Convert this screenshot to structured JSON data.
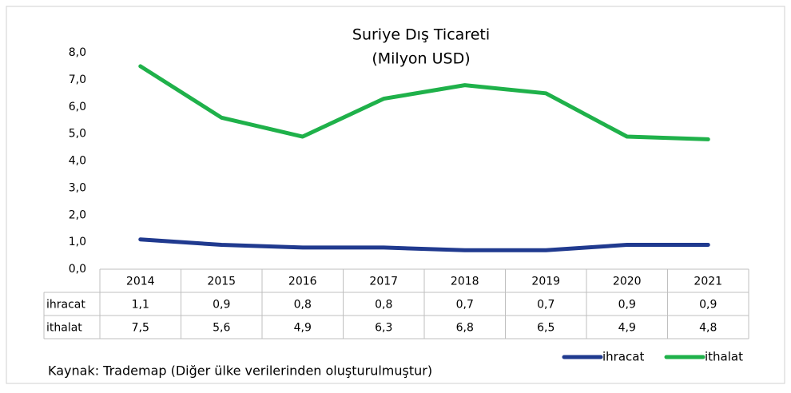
{
  "chart_data": {
    "type": "line",
    "title": "Suriye Dış Ticareti",
    "subtitle": "(Milyon USD)",
    "source": "Kaynak: Trademap (Diğer ülke verilerinden oluşturulmuştur)",
    "categories": [
      "2014",
      "2015",
      "2016",
      "2017",
      "2018",
      "2019",
      "2020",
      "2021"
    ],
    "series": [
      {
        "name": "ihracat",
        "color": "#203a8f",
        "values": [
          1.1,
          0.9,
          0.8,
          0.8,
          0.7,
          0.7,
          0.9,
          0.9
        ],
        "value_labels": [
          "1,1",
          "0,9",
          "0,8",
          "0,8",
          "0,7",
          "0,7",
          "0,9",
          "0,9"
        ]
      },
      {
        "name": "ithalat",
        "color": "#1fb14a",
        "values": [
          7.5,
          5.6,
          4.9,
          6.3,
          6.8,
          6.5,
          4.9,
          4.8
        ],
        "value_labels": [
          "7,5",
          "5,6",
          "4,9",
          "6,3",
          "6,8",
          "6,5",
          "4,9",
          "4,8"
        ]
      }
    ],
    "ylim": [
      0,
      8
    ],
    "yticks": [
      {
        "value": 0,
        "label": "0,0"
      },
      {
        "value": 1,
        "label": "1,0"
      },
      {
        "value": 2,
        "label": "2,0"
      },
      {
        "value": 3,
        "label": "3,0"
      },
      {
        "value": 4,
        "label": "4,0"
      },
      {
        "value": 5,
        "label": "5,0"
      },
      {
        "value": 6,
        "label": "6,0"
      },
      {
        "value": 7,
        "label": "7,0"
      },
      {
        "value": 8,
        "label": "8,0"
      }
    ],
    "legend": "bottom-right"
  }
}
